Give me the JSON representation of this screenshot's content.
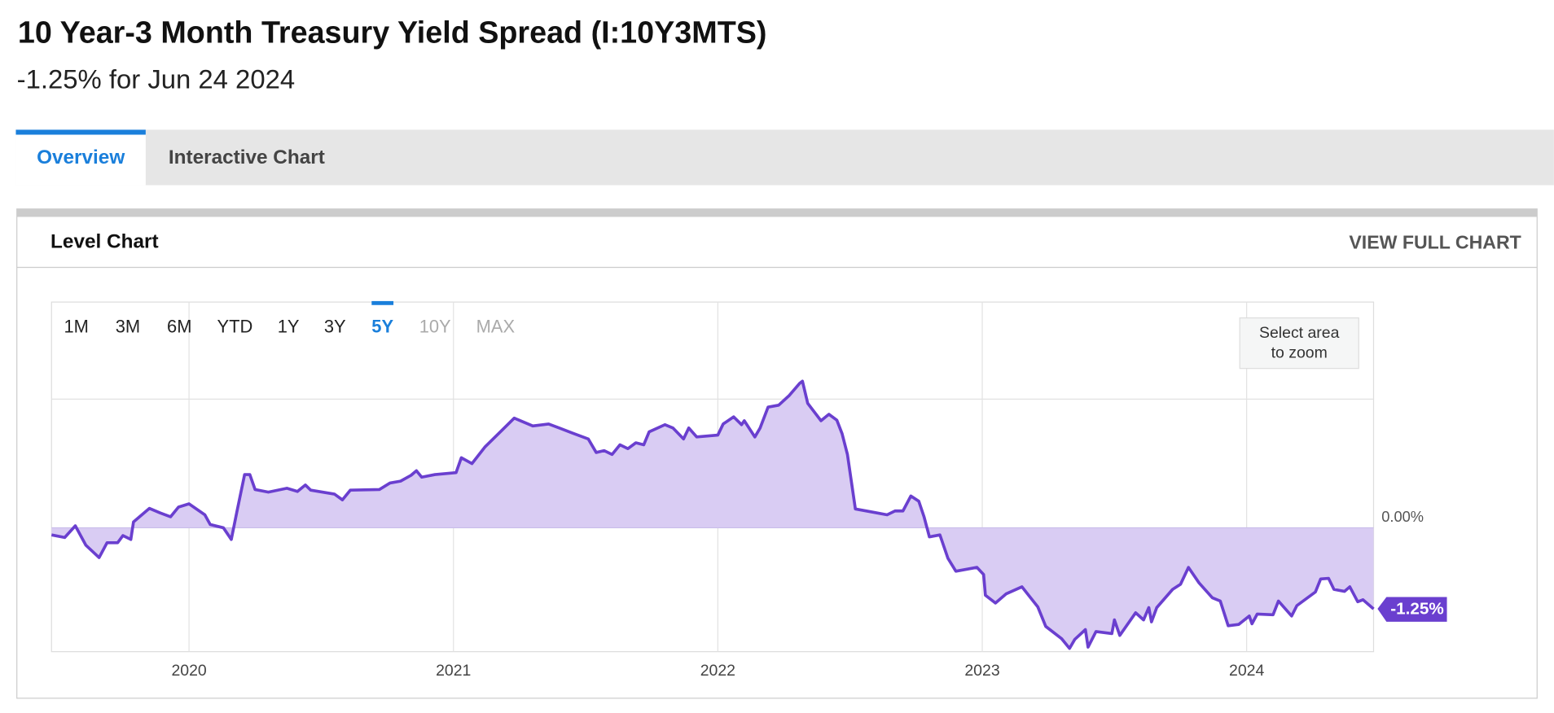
{
  "header": {
    "title": "10 Year-3 Month Treasury Yield Spread (I:10Y3MTS)",
    "subtitle": "-1.25% for Jun 24 2024"
  },
  "tabs": [
    "Overview",
    "Interactive Chart"
  ],
  "active_tab": 0,
  "panel": {
    "title": "Level Chart",
    "link": "VIEW FULL CHART"
  },
  "range_buttons": [
    "1M",
    "3M",
    "6M",
    "YTD",
    "1Y",
    "3Y",
    "5Y",
    "10Y",
    "MAX"
  ],
  "active_range": 6,
  "disabled_ranges": [
    7,
    8
  ],
  "zoom_button": [
    "Select area",
    "to zoom"
  ],
  "chart_data": {
    "type": "line",
    "color": "#6a3fcf",
    "fill_color": "#d9ccf3",
    "grid": true,
    "xlim": [
      2019.48,
      2024.48
    ],
    "xticks": [
      2020,
      2021,
      2022,
      2023,
      2024
    ],
    "ylim": [
      -1.91,
      3.48
    ],
    "yticks": [
      {
        "value": 0,
        "label": "0.00%"
      }
    ],
    "current_label": "-1.25%",
    "x": [
      2019.48,
      2019.53,
      2019.57,
      2019.61,
      2019.66,
      2019.69,
      2019.73,
      2019.75,
      2019.78,
      2019.79,
      2019.85,
      2019.89,
      2019.93,
      2019.96,
      2020.0,
      2020.06,
      2020.08,
      2020.13,
      2020.16,
      2020.18,
      2020.21,
      2020.23,
      2020.25,
      2020.3,
      2020.37,
      2020.41,
      2020.44,
      2020.46,
      2020.55,
      2020.58,
      2020.61,
      2020.72,
      2020.76,
      2020.8,
      2020.84,
      2020.86,
      2020.88,
      2020.93,
      2021.01,
      2021.03,
      2021.07,
      2021.12,
      2021.18,
      2021.23,
      2021.3,
      2021.36,
      2021.4,
      2021.45,
      2021.51,
      2021.54,
      2021.57,
      2021.6,
      2021.63,
      2021.66,
      2021.69,
      2021.72,
      2021.74,
      2021.8,
      2021.83,
      2021.87,
      2021.89,
      2021.92,
      2022.0,
      2022.02,
      2022.06,
      2022.09,
      2022.1,
      2022.14,
      2022.16,
      2022.19,
      2022.23,
      2022.27,
      2022.31,
      2022.32,
      2022.34,
      2022.39,
      2022.42,
      2022.45,
      2022.47,
      2022.49,
      2022.52,
      2022.6,
      2022.64,
      2022.67,
      2022.7,
      2022.73,
      2022.76,
      2022.78,
      2022.8,
      2022.84,
      2022.87,
      2022.9,
      2022.98,
      2023.005,
      2023.012,
      2023.05,
      2023.09,
      2023.15,
      2023.21,
      2023.24,
      2023.3,
      2023.33,
      2023.35,
      2023.39,
      2023.4,
      2023.43,
      2023.49,
      2023.5,
      2023.52,
      2023.58,
      2023.61,
      2023.63,
      2023.64,
      2023.66,
      2023.72,
      2023.75,
      2023.78,
      2023.82,
      2023.87,
      2023.9,
      2023.93,
      2023.97,
      2024.01,
      2024.02,
      2024.04,
      2024.1,
      2024.12,
      2024.17,
      2024.19,
      2024.26,
      2024.28,
      2024.31,
      2024.33,
      2024.37,
      2024.39,
      2024.42,
      2024.44,
      2024.48
    ],
    "values": [
      -0.11,
      -0.15,
      0.03,
      -0.27,
      -0.46,
      -0.23,
      -0.23,
      -0.12,
      -0.18,
      0.09,
      0.3,
      0.23,
      0.17,
      0.32,
      0.37,
      0.2,
      0.05,
      0,
      -0.18,
      0.23,
      0.82,
      0.82,
      0.59,
      0.55,
      0.61,
      0.56,
      0.66,
      0.58,
      0.52,
      0.43,
      0.58,
      0.59,
      0.69,
      0.72,
      0.81,
      0.88,
      0.78,
      0.82,
      0.85,
      1.08,
      0.99,
      1.25,
      1.49,
      1.69,
      1.57,
      1.6,
      1.54,
      1.46,
      1.37,
      1.16,
      1.19,
      1.13,
      1.28,
      1.22,
      1.31,
      1.28,
      1.48,
      1.59,
      1.54,
      1.37,
      1.54,
      1.4,
      1.43,
      1.6,
      1.71,
      1.59,
      1.65,
      1.4,
      1.54,
      1.86,
      1.89,
      2.04,
      2.23,
      2.26,
      1.92,
      1.65,
      1.75,
      1.66,
      1.45,
      1.13,
      0.29,
      0.23,
      0.2,
      0.26,
      0.26,
      0.49,
      0.41,
      0.17,
      -0.14,
      -0.11,
      -0.47,
      -0.67,
      -0.61,
      -0.72,
      -1.04,
      -1.16,
      -1.02,
      -0.91,
      -1.22,
      -1.52,
      -1.71,
      -1.86,
      -1.72,
      -1.57,
      -1.84,
      -1.6,
      -1.63,
      -1.42,
      -1.66,
      -1.31,
      -1.42,
      -1.23,
      -1.45,
      -1.23,
      -0.95,
      -0.87,
      -0.61,
      -0.85,
      -1.08,
      -1.13,
      -1.51,
      -1.49,
      -1.36,
      -1.48,
      -1.33,
      -1.34,
      -1.13,
      -1.36,
      -1.2,
      -0.99,
      -0.79,
      -0.78,
      -0.95,
      -0.98,
      -0.91,
      -1.14,
      -1.11,
      -1.25
    ]
  }
}
